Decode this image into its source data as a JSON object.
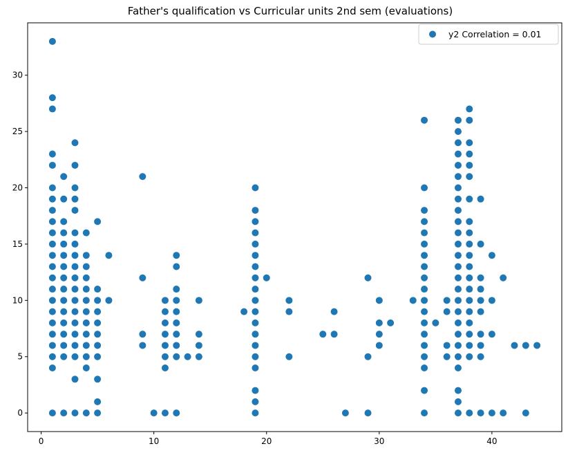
{
  "chart_data": {
    "type": "scatter",
    "title": "Father's qualification vs Curricular units 2nd sem (evaluations)",
    "xlabel": "",
    "ylabel": "",
    "xlim": [
      -1.2,
      46.2
    ],
    "ylim": [
      -1.65,
      34.65
    ],
    "xticks": [
      0,
      10,
      20,
      30,
      40
    ],
    "yticks": [
      0,
      5,
      10,
      15,
      20,
      25,
      30
    ],
    "grid": false,
    "legend_position": "top-right",
    "point_color": "#1f77b4",
    "series": [
      {
        "name": "y2 Correlation = 0.01",
        "points": [
          [
            1,
            0
          ],
          [
            1,
            4
          ],
          [
            1,
            5
          ],
          [
            1,
            6
          ],
          [
            1,
            7
          ],
          [
            1,
            8
          ],
          [
            1,
            9
          ],
          [
            1,
            10
          ],
          [
            1,
            11
          ],
          [
            1,
            12
          ],
          [
            1,
            13
          ],
          [
            1,
            14
          ],
          [
            1,
            15
          ],
          [
            1,
            16
          ],
          [
            1,
            17
          ],
          [
            1,
            18
          ],
          [
            1,
            19
          ],
          [
            1,
            20
          ],
          [
            1,
            22
          ],
          [
            1,
            23
          ],
          [
            1,
            27
          ],
          [
            1,
            28
          ],
          [
            1,
            33
          ],
          [
            2,
            0
          ],
          [
            2,
            5
          ],
          [
            2,
            6
          ],
          [
            2,
            7
          ],
          [
            2,
            8
          ],
          [
            2,
            9
          ],
          [
            2,
            10
          ],
          [
            2,
            11
          ],
          [
            2,
            12
          ],
          [
            2,
            13
          ],
          [
            2,
            14
          ],
          [
            2,
            15
          ],
          [
            2,
            16
          ],
          [
            2,
            17
          ],
          [
            2,
            19
          ],
          [
            2,
            21
          ],
          [
            3,
            0
          ],
          [
            3,
            3
          ],
          [
            3,
            5
          ],
          [
            3,
            6
          ],
          [
            3,
            7
          ],
          [
            3,
            8
          ],
          [
            3,
            9
          ],
          [
            3,
            10
          ],
          [
            3,
            11
          ],
          [
            3,
            12
          ],
          [
            3,
            13
          ],
          [
            3,
            14
          ],
          [
            3,
            15
          ],
          [
            3,
            16
          ],
          [
            3,
            18
          ],
          [
            3,
            19
          ],
          [
            3,
            20
          ],
          [
            3,
            22
          ],
          [
            3,
            24
          ],
          [
            4,
            0
          ],
          [
            4,
            4
          ],
          [
            4,
            5
          ],
          [
            4,
            6
          ],
          [
            4,
            7
          ],
          [
            4,
            8
          ],
          [
            4,
            9
          ],
          [
            4,
            10
          ],
          [
            4,
            11
          ],
          [
            4,
            12
          ],
          [
            4,
            13
          ],
          [
            4,
            14
          ],
          [
            4,
            16
          ],
          [
            5,
            0
          ],
          [
            5,
            1
          ],
          [
            5,
            3
          ],
          [
            5,
            5
          ],
          [
            5,
            6
          ],
          [
            5,
            7
          ],
          [
            5,
            8
          ],
          [
            5,
            9
          ],
          [
            5,
            10
          ],
          [
            5,
            11
          ],
          [
            5,
            17
          ],
          [
            6,
            10
          ],
          [
            6,
            14
          ],
          [
            9,
            6
          ],
          [
            9,
            7
          ],
          [
            9,
            12
          ],
          [
            9,
            21
          ],
          [
            10,
            0
          ],
          [
            11,
            0
          ],
          [
            11,
            4
          ],
          [
            11,
            5
          ],
          [
            11,
            6
          ],
          [
            11,
            7
          ],
          [
            11,
            8
          ],
          [
            11,
            9
          ],
          [
            11,
            10
          ],
          [
            12,
            0
          ],
          [
            12,
            5
          ],
          [
            12,
            6
          ],
          [
            12,
            7
          ],
          [
            12,
            8
          ],
          [
            12,
            9
          ],
          [
            12,
            10
          ],
          [
            12,
            11
          ],
          [
            12,
            13
          ],
          [
            12,
            14
          ],
          [
            13,
            5
          ],
          [
            14,
            5
          ],
          [
            14,
            6
          ],
          [
            14,
            7
          ],
          [
            14,
            10
          ],
          [
            18,
            9
          ],
          [
            19,
            0
          ],
          [
            19,
            1
          ],
          [
            19,
            2
          ],
          [
            19,
            4
          ],
          [
            19,
            5
          ],
          [
            19,
            6
          ],
          [
            19,
            7
          ],
          [
            19,
            8
          ],
          [
            19,
            9
          ],
          [
            19,
            10
          ],
          [
            19,
            11
          ],
          [
            19,
            12
          ],
          [
            19,
            13
          ],
          [
            19,
            14
          ],
          [
            19,
            15
          ],
          [
            19,
            16
          ],
          [
            19,
            17
          ],
          [
            19,
            18
          ],
          [
            19,
            20
          ],
          [
            20,
            12
          ],
          [
            22,
            5
          ],
          [
            22,
            9
          ],
          [
            22,
            10
          ],
          [
            25,
            7
          ],
          [
            26,
            7
          ],
          [
            26,
            9
          ],
          [
            27,
            0
          ],
          [
            29,
            0
          ],
          [
            29,
            5
          ],
          [
            29,
            12
          ],
          [
            30,
            6
          ],
          [
            30,
            7
          ],
          [
            30,
            8
          ],
          [
            30,
            10
          ],
          [
            31,
            8
          ],
          [
            33,
            10
          ],
          [
            34,
            0
          ],
          [
            34,
            2
          ],
          [
            34,
            4
          ],
          [
            34,
            5
          ],
          [
            34,
            6
          ],
          [
            34,
            7
          ],
          [
            34,
            8
          ],
          [
            34,
            9
          ],
          [
            34,
            10
          ],
          [
            34,
            11
          ],
          [
            34,
            12
          ],
          [
            34,
            13
          ],
          [
            34,
            14
          ],
          [
            34,
            15
          ],
          [
            34,
            16
          ],
          [
            34,
            17
          ],
          [
            34,
            18
          ],
          [
            34,
            20
          ],
          [
            34,
            26
          ],
          [
            35,
            8
          ],
          [
            36,
            5
          ],
          [
            36,
            6
          ],
          [
            36,
            9
          ],
          [
            36,
            10
          ],
          [
            37,
            0
          ],
          [
            37,
            1
          ],
          [
            37,
            2
          ],
          [
            37,
            4
          ],
          [
            37,
            5
          ],
          [
            37,
            6
          ],
          [
            37,
            7
          ],
          [
            37,
            8
          ],
          [
            37,
            9
          ],
          [
            37,
            10
          ],
          [
            37,
            11
          ],
          [
            37,
            12
          ],
          [
            37,
            13
          ],
          [
            37,
            14
          ],
          [
            37,
            15
          ],
          [
            37,
            16
          ],
          [
            37,
            17
          ],
          [
            37,
            18
          ],
          [
            37,
            19
          ],
          [
            37,
            20
          ],
          [
            37,
            21
          ],
          [
            37,
            22
          ],
          [
            37,
            23
          ],
          [
            37,
            24
          ],
          [
            37,
            25
          ],
          [
            37,
            26
          ],
          [
            38,
            0
          ],
          [
            38,
            5
          ],
          [
            38,
            6
          ],
          [
            38,
            7
          ],
          [
            38,
            8
          ],
          [
            38,
            9
          ],
          [
            38,
            10
          ],
          [
            38,
            11
          ],
          [
            38,
            12
          ],
          [
            38,
            13
          ],
          [
            38,
            14
          ],
          [
            38,
            15
          ],
          [
            38,
            16
          ],
          [
            38,
            17
          ],
          [
            38,
            19
          ],
          [
            38,
            21
          ],
          [
            38,
            22
          ],
          [
            38,
            23
          ],
          [
            38,
            24
          ],
          [
            38,
            26
          ],
          [
            38,
            27
          ],
          [
            39,
            0
          ],
          [
            39,
            5
          ],
          [
            39,
            6
          ],
          [
            39,
            7
          ],
          [
            39,
            9
          ],
          [
            39,
            10
          ],
          [
            39,
            11
          ],
          [
            39,
            12
          ],
          [
            39,
            15
          ],
          [
            39,
            19
          ],
          [
            40,
            0
          ],
          [
            40,
            7
          ],
          [
            40,
            10
          ],
          [
            40,
            14
          ],
          [
            41,
            0
          ],
          [
            41,
            12
          ],
          [
            42,
            6
          ],
          [
            43,
            0
          ],
          [
            43,
            6
          ],
          [
            44,
            6
          ]
        ]
      }
    ]
  }
}
